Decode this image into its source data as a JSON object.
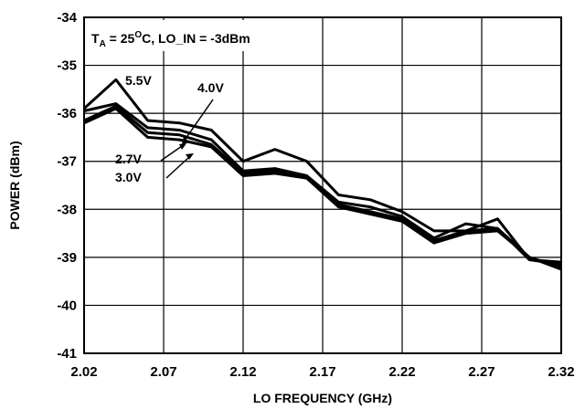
{
  "chart_data": {
    "type": "line",
    "xlabel": "LO FREQUENCY (GHz)",
    "ylabel": "POWER (dBm)",
    "xlim": [
      2.02,
      2.32
    ],
    "ylim": [
      -41,
      -34
    ],
    "xticks": [
      "2.02",
      "2.07",
      "2.12",
      "2.17",
      "2.22",
      "2.27",
      "2.32"
    ],
    "yticks": [
      "-34",
      "-35",
      "-36",
      "-37",
      "-38",
      "-39",
      "-40",
      "-41"
    ],
    "grid": true,
    "condition": {
      "t_sym": "T",
      "t_sub": "A",
      "t_mid": " = 25",
      "t_sup": "O",
      "t_rest": "C, LO_IN = -3dBm"
    },
    "x": [
      2.02,
      2.04,
      2.06,
      2.08,
      2.1,
      2.12,
      2.14,
      2.16,
      2.18,
      2.2,
      2.22,
      2.24,
      2.26,
      2.28,
      2.3,
      2.32
    ],
    "series": [
      {
        "name": "5.5V",
        "values": [
          -35.9,
          -35.3,
          -36.15,
          -36.2,
          -36.35,
          -37.0,
          -36.75,
          -37.0,
          -37.7,
          -37.8,
          -38.05,
          -38.45,
          -38.45,
          -38.2,
          -39.05,
          -39.1
        ]
      },
      {
        "name": "4.0V",
        "values": [
          -35.95,
          -35.8,
          -36.3,
          -36.35,
          -36.55,
          -37.2,
          -37.15,
          -37.3,
          -37.85,
          -37.95,
          -38.15,
          -38.6,
          -38.3,
          -38.4,
          -39.05,
          -39.15
        ]
      },
      {
        "name": "3.0V",
        "values": [
          -36.15,
          -35.85,
          -36.4,
          -36.45,
          -36.65,
          -37.25,
          -37.2,
          -37.35,
          -37.9,
          -38.05,
          -38.2,
          -38.65,
          -38.45,
          -38.4,
          -39.0,
          -39.2
        ]
      },
      {
        "name": "2.7V",
        "values": [
          -36.2,
          -35.9,
          -36.5,
          -36.55,
          -36.7,
          -37.3,
          -37.25,
          -37.35,
          -37.95,
          -38.1,
          -38.25,
          -38.7,
          -38.5,
          -38.45,
          -39.0,
          -39.25
        ]
      }
    ]
  }
}
